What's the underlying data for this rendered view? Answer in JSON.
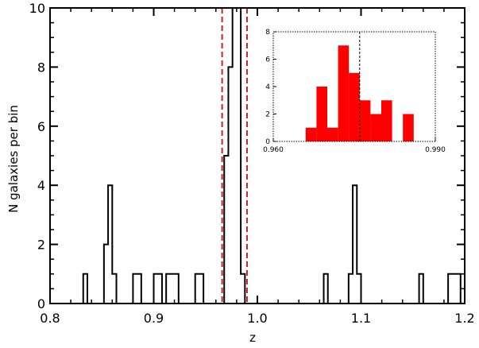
{
  "chart_data": [
    {
      "type": "histogram-step",
      "xlabel": "z",
      "ylabel": "N galaxies per bin",
      "xlim": [
        0.8,
        1.2
      ],
      "ylim": [
        0,
        10
      ],
      "x_ticks": [
        0.8,
        0.9,
        1.0,
        1.1,
        1.2
      ],
      "x_tick_labels": [
        "0.8",
        "0.9",
        "1.0",
        "1.1",
        "1.2"
      ],
      "y_ticks": [
        0,
        2,
        4,
        6,
        8,
        10
      ],
      "y_tick_labels": [
        "0",
        "2",
        "4",
        "6",
        "8",
        "10"
      ],
      "bin_width": 0.004,
      "bins": [
        {
          "x0": 0.832,
          "count": 1
        },
        {
          "x0": 0.852,
          "count": 2
        },
        {
          "x0": 0.856,
          "count": 4
        },
        {
          "x0": 0.86,
          "count": 1
        },
        {
          "x0": 0.88,
          "count": 1
        },
        {
          "x0": 0.884,
          "count": 1
        },
        {
          "x0": 0.9,
          "count": 1
        },
        {
          "x0": 0.904,
          "count": 1
        },
        {
          "x0": 0.912,
          "count": 1
        },
        {
          "x0": 0.916,
          "count": 1
        },
        {
          "x0": 0.92,
          "count": 1
        },
        {
          "x0": 0.94,
          "count": 1
        },
        {
          "x0": 0.944,
          "count": 1
        },
        {
          "x0": 0.968,
          "count": 5
        },
        {
          "x0": 0.972,
          "count": 8
        },
        {
          "x0": 0.976,
          "count": 10
        },
        {
          "x0": 0.98,
          "count": 10
        },
        {
          "x0": 0.984,
          "count": 1
        },
        {
          "x0": 1.064,
          "count": 1
        },
        {
          "x0": 1.088,
          "count": 1
        },
        {
          "x0": 1.092,
          "count": 4
        },
        {
          "x0": 1.096,
          "count": 1
        },
        {
          "x0": 1.156,
          "count": 1
        },
        {
          "x0": 1.184,
          "count": 1
        },
        {
          "x0": 1.188,
          "count": 1
        },
        {
          "x0": 1.192,
          "count": 1
        }
      ],
      "vlines": [
        0.966,
        0.99
      ],
      "vline_color": "#cc2222",
      "line_color": "#000000"
    },
    {
      "type": "histogram-filled",
      "xlim": [
        0.96,
        0.99
      ],
      "ylim": [
        0,
        8
      ],
      "x_ticks": [
        0.96,
        0.99
      ],
      "x_tick_labels": [
        "0.960",
        "0.990"
      ],
      "y_ticks": [
        0,
        2,
        4,
        6,
        8
      ],
      "y_tick_labels": [
        "0",
        "2",
        "4",
        "6",
        "8"
      ],
      "bin_width": 0.002,
      "bins": [
        {
          "x0": 0.966,
          "count": 1
        },
        {
          "x0": 0.968,
          "count": 4
        },
        {
          "x0": 0.97,
          "count": 1
        },
        {
          "x0": 0.972,
          "count": 7
        },
        {
          "x0": 0.974,
          "count": 5
        },
        {
          "x0": 0.976,
          "count": 3
        },
        {
          "x0": 0.978,
          "count": 2
        },
        {
          "x0": 0.98,
          "count": 3
        },
        {
          "x0": 0.982,
          "count": 0
        },
        {
          "x0": 0.984,
          "count": 2
        }
      ],
      "vline": 0.976,
      "fill_color": "#ff0000"
    }
  ]
}
